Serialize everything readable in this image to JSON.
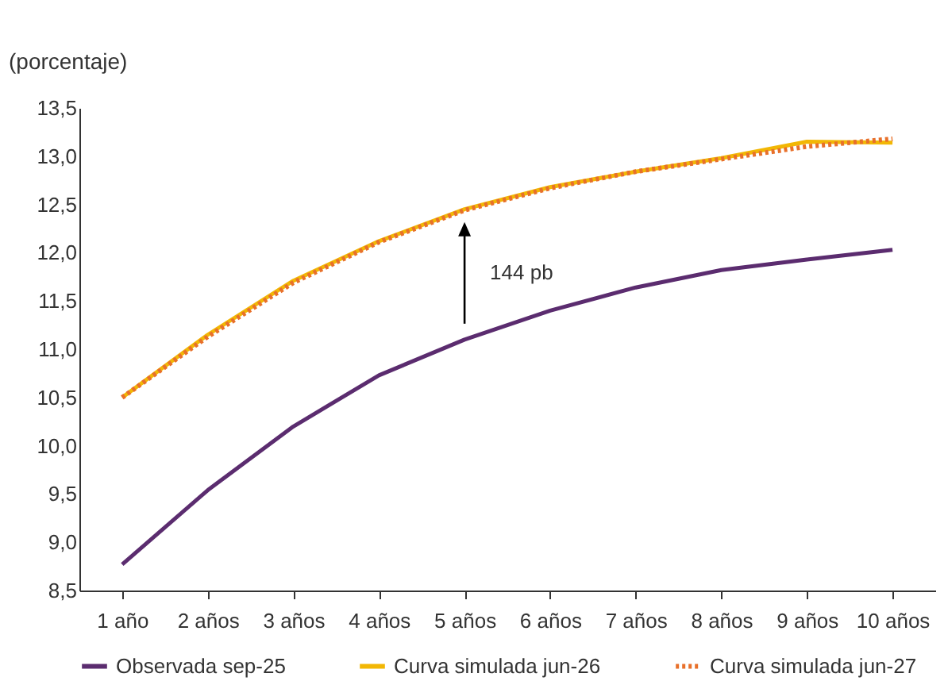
{
  "chart_data": {
    "type": "line",
    "ylabel": "(porcentaje)",
    "categories": [
      "1 año",
      "2 años",
      "3 años",
      "4 años",
      "5 años",
      "6 años",
      "7 años",
      "8 años",
      "9 años",
      "10 años"
    ],
    "series": [
      {
        "name": "Observada sep-25",
        "color": "#5b2c6f",
        "line_style": "solid",
        "values": [
          8.77,
          9.54,
          10.2,
          10.73,
          11.1,
          11.4,
          11.64,
          11.82,
          11.93,
          12.03
        ]
      },
      {
        "name": "Curva simulada jun-26",
        "color": "#f2b705",
        "line_style": "solid",
        "values": [
          10.5,
          11.15,
          11.71,
          12.12,
          12.45,
          12.68,
          12.84,
          12.98,
          13.15,
          13.14
        ]
      },
      {
        "name": "Curva simulada jun-27",
        "color": "#e8702a",
        "line_style": "dotted",
        "values": [
          10.5,
          11.13,
          11.69,
          12.11,
          12.44,
          12.67,
          12.84,
          12.97,
          13.1,
          13.18
        ]
      }
    ],
    "ylim": [
      8.5,
      13.5
    ],
    "yticks": [
      {
        "value": 8.5,
        "label": "8,5"
      },
      {
        "value": 9,
        "label": "9,0"
      },
      {
        "value": 9.5,
        "label": "9,5"
      },
      {
        "value": 10,
        "label": "10,0"
      },
      {
        "value": 10.5,
        "label": "10,5"
      },
      {
        "value": 11,
        "label": "11,0"
      },
      {
        "value": 11.5,
        "label": "11,5"
      },
      {
        "value": 12,
        "label": "12,0"
      },
      {
        "value": 12.5,
        "label": "12,5"
      },
      {
        "value": 13,
        "label": "13,0"
      },
      {
        "value": 13.5,
        "label": "13,5"
      }
    ],
    "annotations": [
      "144 pb"
    ],
    "grid": false,
    "legend": "bottom",
    "marker": "none"
  }
}
